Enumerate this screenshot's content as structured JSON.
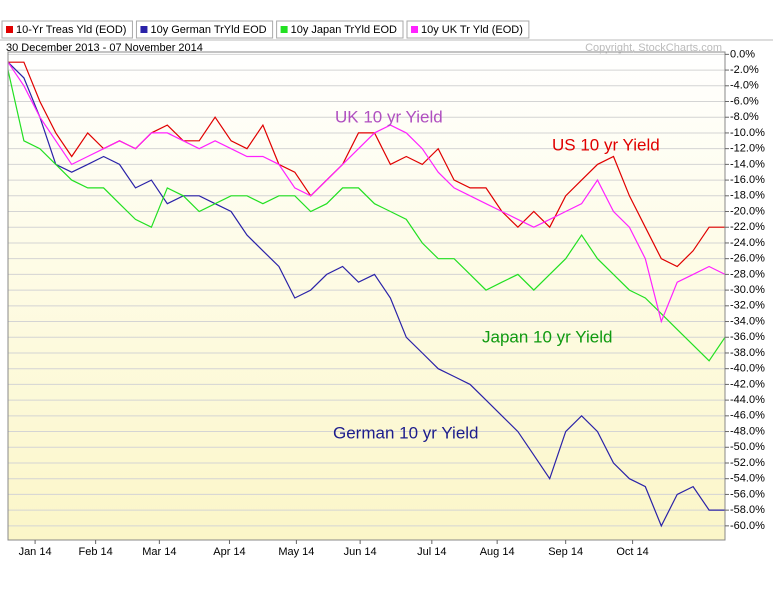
{
  "chart_data": {
    "type": "line",
    "subtitle": "30 December 2013 - 07 November 2014",
    "credit": "Copyright, StockCharts.com",
    "x": [
      0,
      1,
      2,
      3,
      4,
      5,
      6,
      7,
      8,
      9,
      10,
      11,
      12,
      13,
      14,
      15,
      16,
      17,
      18,
      19,
      20,
      21,
      22,
      23,
      24,
      25,
      26,
      27,
      28,
      29,
      30,
      31,
      32,
      33,
      34,
      35,
      36,
      37,
      38,
      39,
      40,
      41,
      42,
      43,
      44,
      45
    ],
    "xlim": [
      0,
      45
    ],
    "xticks": [
      {
        "value": 1.7,
        "label": "Jan 14"
      },
      {
        "value": 5.5,
        "label": "Feb 14"
      },
      {
        "value": 9.5,
        "label": "Mar 14"
      },
      {
        "value": 13.9,
        "label": "Apr 14"
      },
      {
        "value": 18.1,
        "label": "May 14"
      },
      {
        "value": 22.1,
        "label": "Jun 14"
      },
      {
        "value": 26.6,
        "label": "Jul 14"
      },
      {
        "value": 30.7,
        "label": "Aug 14"
      },
      {
        "value": 35.0,
        "label": "Sep 14"
      },
      {
        "value": 39.2,
        "label": "Oct 14"
      }
    ],
    "ylim": [
      -61.8,
      0.3
    ],
    "yticks": [
      {
        "value": 0,
        "label": "0.0%"
      },
      {
        "value": -2,
        "label": "-2.0%"
      },
      {
        "value": -4,
        "label": "-4.0%"
      },
      {
        "value": -6,
        "label": "-6.0%"
      },
      {
        "value": -8,
        "label": "-8.0%"
      },
      {
        "value": -10,
        "label": "-10.0%"
      },
      {
        "value": -12,
        "label": "-12.0%"
      },
      {
        "value": -14,
        "label": "-14.0%"
      },
      {
        "value": -16,
        "label": "-16.0%"
      },
      {
        "value": -18,
        "label": "-18.0%"
      },
      {
        "value": -20,
        "label": "-20.0%"
      },
      {
        "value": -22,
        "label": "-22.0%"
      },
      {
        "value": -24,
        "label": "-24.0%"
      },
      {
        "value": -26,
        "label": "-26.0%"
      },
      {
        "value": -28,
        "label": "-28.0%"
      },
      {
        "value": -30,
        "label": "-30.0%"
      },
      {
        "value": -32,
        "label": "-32.0%"
      },
      {
        "value": -34,
        "label": "-34.0%"
      },
      {
        "value": -36,
        "label": "-36.0%"
      },
      {
        "value": -38,
        "label": "-38.0%"
      },
      {
        "value": -40,
        "label": "-40.0%"
      },
      {
        "value": -42,
        "label": "-42.0%"
      },
      {
        "value": -44,
        "label": "-44.0%"
      },
      {
        "value": -46,
        "label": "-46.0%"
      },
      {
        "value": -48,
        "label": "-48.0%"
      },
      {
        "value": -50,
        "label": "-50.0%"
      },
      {
        "value": -52,
        "label": "-52.0%"
      },
      {
        "value": -54,
        "label": "-54.0%"
      },
      {
        "value": -56,
        "label": "-56.0%"
      },
      {
        "value": -58,
        "label": "-58.0%"
      },
      {
        "value": -60,
        "label": "-60.0%"
      }
    ],
    "grid": true,
    "series": [
      {
        "name": "10-Yr Treas Yld (EOD)",
        "color": "#e00000",
        "values": [
          -1,
          -1,
          -6,
          -10,
          -13,
          -10,
          -12,
          -11,
          -12,
          -10,
          -9,
          -11,
          -11,
          -8,
          -11,
          -12,
          -9,
          -14,
          -15,
          -18,
          -16,
          -14,
          -10,
          -10,
          -14,
          -13,
          -14,
          -12,
          -16,
          -17,
          -17,
          -20,
          -22,
          -20,
          -22,
          -18,
          -16,
          -14,
          -13,
          -18,
          -22,
          -26,
          -27,
          -25,
          -22,
          -22
        ]
      },
      {
        "name": "10y German TrYld EOD",
        "color": "#2a22a8",
        "values": [
          -1,
          -3,
          -8,
          -14,
          -15,
          -14,
          -13,
          -14,
          -17,
          -16,
          -19,
          -18,
          -18,
          -19,
          -20,
          -23,
          -25,
          -27,
          -31,
          -30,
          -28,
          -27,
          -29,
          -28,
          -31,
          -36,
          -38,
          -40,
          -41,
          -42,
          -44,
          -46,
          -48,
          -51,
          -54,
          -48,
          -46,
          -48,
          -52,
          -54,
          -55,
          -60,
          -56,
          -55,
          -58,
          -58
        ]
      },
      {
        "name": "10y Japan TrYld EOD",
        "color": "#22e022",
        "values": [
          -2,
          -11,
          -12,
          -14,
          -16,
          -17,
          -17,
          -19,
          -21,
          -22,
          -17,
          -18,
          -20,
          -19,
          -18,
          -18,
          -19,
          -18,
          -18,
          -20,
          -19,
          -17,
          -17,
          -19,
          -20,
          -21,
          -24,
          -26,
          -26,
          -28,
          -30,
          -29,
          -28,
          -30,
          -28,
          -26,
          -23,
          -26,
          -28,
          -30,
          -31,
          -33,
          -35,
          -37,
          -39,
          -36
        ]
      },
      {
        "name": "10y UK Tr Yld (EOD)",
        "color": "#ff22ff",
        "values": [
          -1,
          -4,
          -8,
          -11,
          -14,
          -13,
          -12,
          -11,
          -12,
          -10,
          -10,
          -11,
          -12,
          -11,
          -12,
          -13,
          -13,
          -14,
          -17,
          -18,
          -16,
          -14,
          -12,
          -10,
          -9,
          -10,
          -12,
          -15,
          -17,
          -18,
          -19,
          -20,
          -21,
          -22,
          -21,
          -20,
          -19,
          -16,
          -20,
          -22,
          -26,
          -34,
          -29,
          -28,
          -27,
          -28
        ]
      }
    ],
    "annotations": [
      "UK 10 yr Yield",
      "US 10 yr Yield",
      "Japan 10 yr Yield",
      "German 10 yr Yield"
    ]
  }
}
